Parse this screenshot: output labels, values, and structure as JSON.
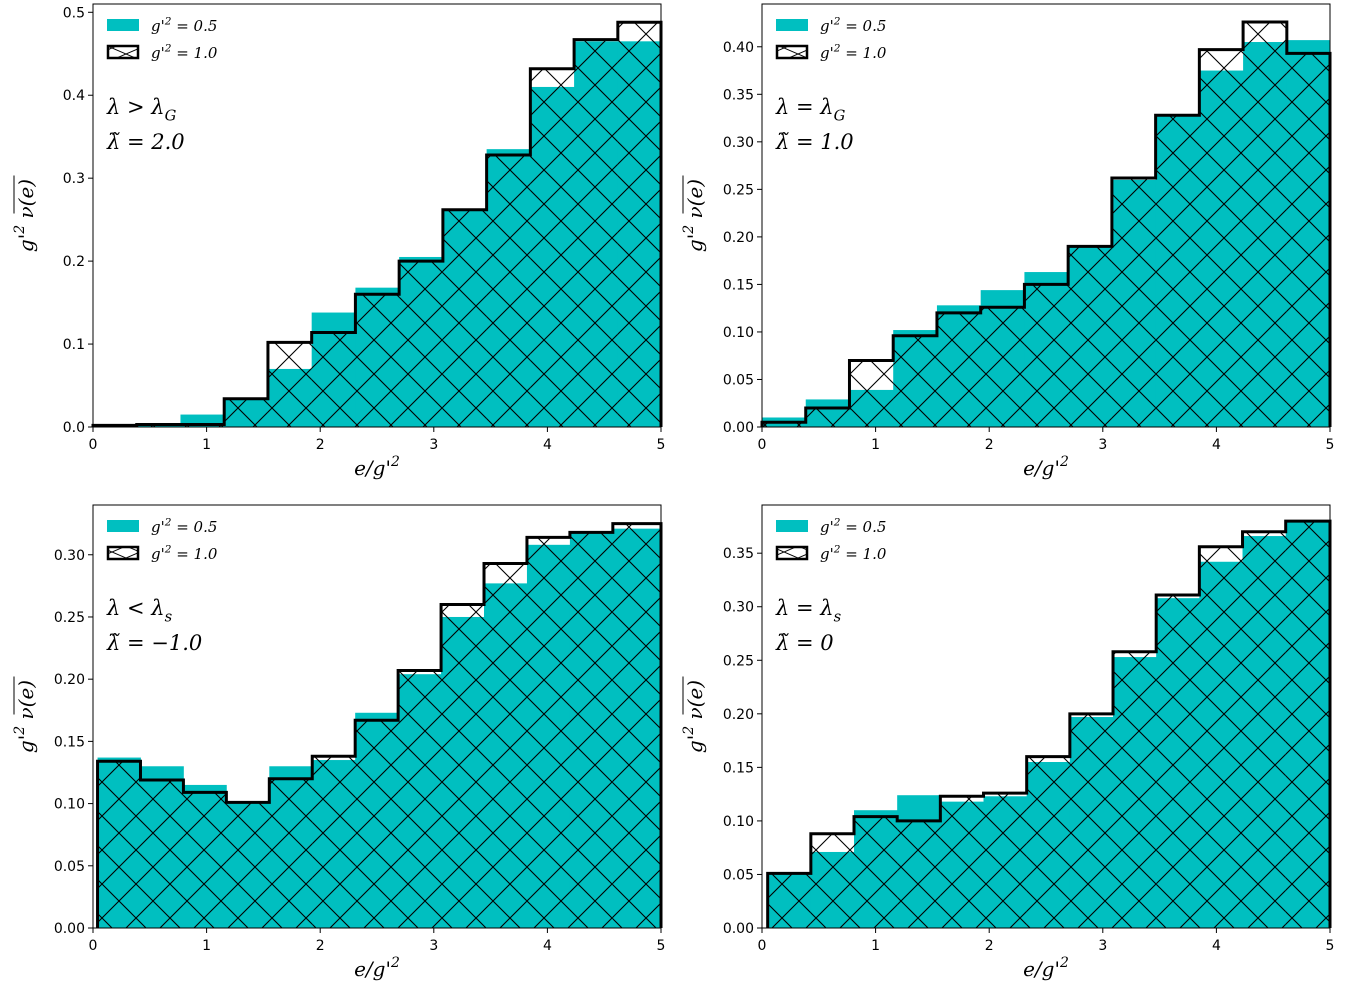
{
  "chart_data": [
    {
      "type": "histogram-step",
      "xlabel": "e/g'^2",
      "ylabel": "g'^2 ν(e)",
      "xlim": [
        0,
        5
      ],
      "ylim": [
        0,
        0.51
      ],
      "xticks": [
        "0",
        "1",
        "2",
        "3",
        "4",
        "5"
      ],
      "yticks": [
        "0.0",
        "0.1",
        "0.2",
        "0.3",
        "0.4",
        "0.5"
      ],
      "ytick_values": [
        0,
        0.1,
        0.2,
        0.3,
        0.4,
        0.5
      ],
      "annotation": [
        "λ > λ_G",
        "λ̃ = 2.0"
      ],
      "legend": [
        "g'^2 = 0.5",
        "g'^2 = 1.0"
      ],
      "legend_position": "top-left",
      "bin_edges": [
        0,
        0.385,
        0.77,
        1.155,
        1.54,
        1.925,
        2.31,
        2.695,
        3.08,
        3.465,
        3.85,
        4.235,
        4.62,
        5
      ],
      "series": [
        {
          "name": "g'^2 = 0.5",
          "style": "filled",
          "color": "#00BFC0",
          "values": [
            0.002,
            0.004,
            0.015,
            0.033,
            0.07,
            0.138,
            0.168,
            0.205,
            0.262,
            0.335,
            0.41,
            0.465,
            0.465
          ]
        },
        {
          "name": "g'^2 = 1.0",
          "style": "hatched-outline",
          "color": "#000000",
          "values": [
            0.002,
            0.003,
            0.003,
            0.034,
            0.102,
            0.114,
            0.16,
            0.2,
            0.262,
            0.328,
            0.432,
            0.467,
            0.488
          ]
        }
      ]
    },
    {
      "type": "histogram-step",
      "xlabel": "e/g'^2",
      "ylabel": "g'^2 ν(e)",
      "xlim": [
        0,
        5
      ],
      "ylim": [
        0,
        0.445
      ],
      "xticks": [
        "0",
        "1",
        "2",
        "3",
        "4",
        "5"
      ],
      "yticks": [
        "0.00",
        "0.05",
        "0.10",
        "0.15",
        "0.20",
        "0.25",
        "0.30",
        "0.35",
        "0.40"
      ],
      "ytick_values": [
        0,
        0.05,
        0.1,
        0.15,
        0.2,
        0.25,
        0.3,
        0.35,
        0.4
      ],
      "annotation": [
        "λ = λ_G",
        "λ̃ = 1.0"
      ],
      "legend": [
        "g'^2 = 0.5",
        "g'^2 = 1.0"
      ],
      "legend_position": "top-left",
      "bin_edges": [
        0,
        0.385,
        0.77,
        1.155,
        1.54,
        1.925,
        2.31,
        2.695,
        3.08,
        3.465,
        3.85,
        4.235,
        4.62,
        5
      ],
      "series": [
        {
          "name": "g'^2 = 0.5",
          "style": "filled",
          "color": "#00BFC0",
          "values": [
            0.01,
            0.029,
            0.039,
            0.102,
            0.128,
            0.144,
            0.163,
            0.19,
            0.26,
            0.328,
            0.375,
            0.405,
            0.407
          ]
        },
        {
          "name": "g'^2 = 1.0",
          "style": "hatched-outline",
          "color": "#000000",
          "values": [
            0.005,
            0.02,
            0.07,
            0.096,
            0.12,
            0.126,
            0.15,
            0.19,
            0.262,
            0.328,
            0.397,
            0.426,
            0.393
          ]
        }
      ]
    },
    {
      "type": "histogram-step",
      "xlabel": "e/g'^2",
      "ylabel": "g'^2 ν(e)",
      "xlim": [
        0,
        5
      ],
      "ylim": [
        0,
        0.34
      ],
      "xticks": [
        "0",
        "1",
        "2",
        "3",
        "4",
        "5"
      ],
      "yticks": [
        "0.00",
        "0.05",
        "0.10",
        "0.15",
        "0.20",
        "0.25",
        "0.30"
      ],
      "ytick_values": [
        0,
        0.05,
        0.1,
        0.15,
        0.2,
        0.25,
        0.3
      ],
      "annotation": [
        "λ < λ_s",
        "λ̃ = −1.0"
      ],
      "legend": [
        "g'^2 = 0.5",
        "g'^2 = 1.0"
      ],
      "legend_position": "top-left",
      "bin_edges": [
        0.04,
        0.418,
        0.796,
        1.174,
        1.552,
        1.93,
        2.308,
        2.686,
        3.064,
        3.442,
        3.82,
        4.198,
        4.576,
        5
      ],
      "series": [
        {
          "name": "g'^2 = 0.5",
          "style": "filled",
          "color": "#00BFC0",
          "values": [
            0.137,
            0.13,
            0.115,
            0.102,
            0.13,
            0.135,
            0.173,
            0.204,
            0.25,
            0.277,
            0.308,
            0.318,
            0.321
          ]
        },
        {
          "name": "g'^2 = 1.0",
          "style": "hatched-outline",
          "color": "#000000",
          "values": [
            0.134,
            0.119,
            0.109,
            0.101,
            0.12,
            0.138,
            0.167,
            0.207,
            0.26,
            0.293,
            0.314,
            0.318,
            0.325
          ]
        }
      ]
    },
    {
      "type": "histogram-step",
      "xlabel": "e/g'^2",
      "ylabel": "g'^2 ν(e)",
      "xlim": [
        0,
        5
      ],
      "ylim": [
        0,
        0.395
      ],
      "xticks": [
        "0",
        "1",
        "2",
        "3",
        "4",
        "5"
      ],
      "yticks": [
        "0.00",
        "0.05",
        "0.10",
        "0.15",
        "0.20",
        "0.25",
        "0.30",
        "0.35"
      ],
      "ytick_values": [
        0,
        0.05,
        0.1,
        0.15,
        0.2,
        0.25,
        0.3,
        0.35
      ],
      "annotation": [
        "λ = λ_s",
        "λ̃ = 0"
      ],
      "legend": [
        "g'^2 = 0.5",
        "g'^2 = 1.0"
      ],
      "legend_position": "top-left",
      "bin_edges": [
        0.05,
        0.43,
        0.81,
        1.19,
        1.57,
        1.95,
        2.33,
        2.71,
        3.09,
        3.47,
        3.85,
        4.23,
        4.61,
        5
      ],
      "series": [
        {
          "name": "g'^2 = 0.5",
          "style": "filled",
          "color": "#00BFC0",
          "values": [
            0.05,
            0.071,
            0.11,
            0.124,
            0.118,
            0.123,
            0.155,
            0.197,
            0.253,
            0.308,
            0.342,
            0.366,
            0.38
          ]
        },
        {
          "name": "g'^2 = 1.0",
          "style": "hatched-outline",
          "color": "#000000",
          "values": [
            0.051,
            0.088,
            0.104,
            0.1,
            0.123,
            0.126,
            0.16,
            0.2,
            0.258,
            0.311,
            0.356,
            0.37,
            0.38
          ]
        }
      ]
    }
  ]
}
